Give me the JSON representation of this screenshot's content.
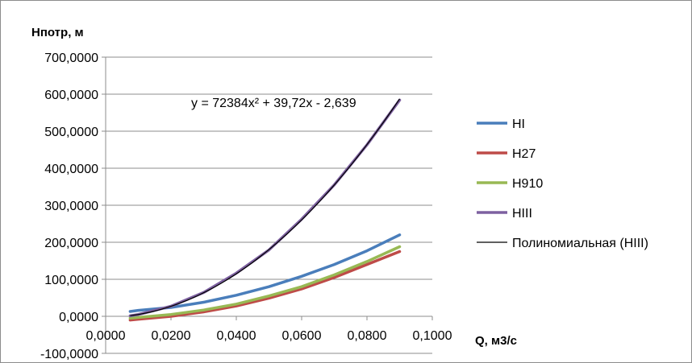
{
  "chart_data": {
    "type": "line",
    "title": "",
    "ylabel": "Нпотр, м",
    "xlabel": "Q, м3/с",
    "xlim": [
      0,
      0.1
    ],
    "ylim": [
      -100,
      700
    ],
    "x_ticks": [
      0,
      0.02,
      0.04,
      0.06,
      0.08,
      0.1
    ],
    "x_tick_labels": [
      "0,0000",
      "0,0200",
      "0,0400",
      "0,0600",
      "0,0800",
      "0,1000"
    ],
    "y_ticks": [
      -100,
      0,
      100,
      200,
      300,
      400,
      500,
      600,
      700
    ],
    "y_tick_labels": [
      "-100,0000",
      "0,0000",
      "100,0000",
      "200,0000",
      "300,0000",
      "400,0000",
      "500,0000",
      "600,0000",
      "700,0000"
    ],
    "grid": "horizontal",
    "legend_position": "right",
    "x": [
      0.0075,
      0.01,
      0.02,
      0.03,
      0.04,
      0.05,
      0.06,
      0.07,
      0.08,
      0.09
    ],
    "series": [
      {
        "name": "HI",
        "color": "#4a7ebb",
        "values": [
          13,
          16,
          24,
          38,
          57,
          80,
          108,
          140,
          177,
          220
        ]
      },
      {
        "name": "H27",
        "color": "#be4b48",
        "values": [
          -10,
          -8,
          0,
          12,
          28,
          49,
          74,
          105,
          140,
          175
        ]
      },
      {
        "name": "H910",
        "color": "#98b954",
        "values": [
          -5,
          -3,
          5,
          17,
          33,
          55,
          80,
          112,
          148,
          188
        ]
      },
      {
        "name": "HIII",
        "color": "#7d60a0",
        "values": [
          1.4,
          4.9,
          27.2,
          64.3,
          116.7,
          179.3,
          262.3,
          355.1,
          463.2,
          584.1
        ]
      },
      {
        "name": "Полиномиальная (HIII)",
        "color": "#000000",
        "trendline": true,
        "coefficients": [
          72384,
          39.72,
          -2.639
        ]
      }
    ],
    "annotation": "y = 72384x² + 39,72x - 2,639"
  }
}
